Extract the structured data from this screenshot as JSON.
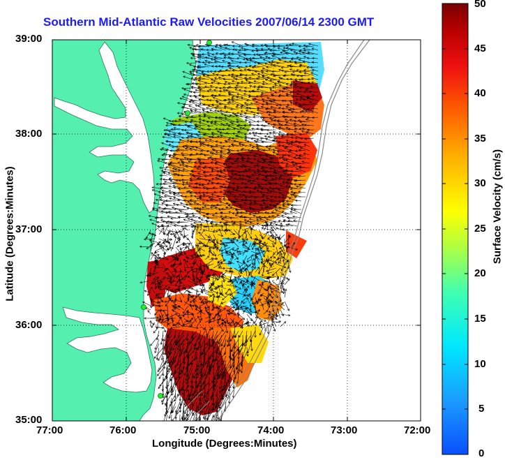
{
  "title": "Southern Mid-Atlantic Raw Velocities 2007/06/14 2300 GMT",
  "x_axis": {
    "label": "Longitude (Degrees:Minutes)",
    "ticks": [
      "77:00",
      "76:00",
      "75:00",
      "74:00",
      "73:00",
      "72:00"
    ]
  },
  "y_axis": {
    "label": "Latitude (Degrees:Minutes)",
    "ticks": [
      "39:00",
      "38:00",
      "37:00",
      "36:00",
      "35:00"
    ]
  },
  "colorbar": {
    "label": "Surface Velocity (cm/s)",
    "ticks": [
      "50",
      "45",
      "40",
      "35",
      "30",
      "25",
      "20",
      "15",
      "10",
      "5",
      "0"
    ],
    "range": [
      0,
      50
    ]
  },
  "colors": {
    "land": "#55f0b0",
    "title": "#1a1aff"
  }
}
